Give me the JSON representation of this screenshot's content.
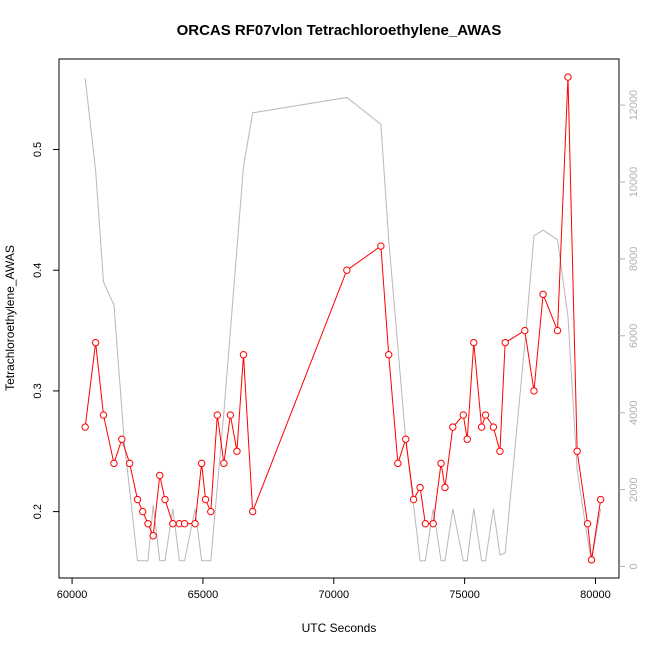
{
  "chart_data": {
    "type": "line",
    "title": "ORCAS RF07vlon Tetrachloroethylene_AWAS",
    "xlabel": "UTC Seconds",
    "ylabel": "Tetrachloroethylene_AWAS",
    "xlim": [
      59500,
      80900
    ],
    "ylim": [
      0.145,
      0.575
    ],
    "y2lim": [
      -300,
      13200
    ],
    "x_ticks": [
      60000,
      65000,
      70000,
      75000,
      80000
    ],
    "y_ticks": [
      0.2,
      0.3,
      0.4,
      0.5
    ],
    "y2_ticks": [
      0,
      2000,
      4000,
      6000,
      8000,
      10000,
      12000
    ],
    "primary_color": "#ff0000",
    "secondary_color": "#b8b8b8",
    "series": [
      {
        "axis": "left",
        "marker": "circle",
        "x": [
          60500,
          60900,
          61200,
          61600,
          61900,
          62200,
          62500,
          62700,
          62900,
          63100,
          63350,
          63550,
          63850,
          64100,
          64300,
          64700,
          64950,
          65100,
          65300,
          65550,
          65800,
          66050,
          66300,
          66550,
          66900,
          70500,
          71800,
          72100,
          72450,
          72750,
          73050,
          73300,
          73500,
          73800,
          74100,
          74250,
          74550,
          74950,
          75100,
          75350,
          75650,
          75800,
          76100,
          76350,
          76550,
          77300,
          77650,
          78000,
          78550,
          78950,
          79300,
          79700,
          79850,
          80200
        ],
        "y": [
          0.27,
          0.34,
          0.28,
          0.24,
          0.26,
          0.24,
          0.21,
          0.2,
          0.19,
          0.18,
          0.23,
          0.21,
          0.19,
          0.19,
          0.19,
          0.19,
          0.24,
          0.21,
          0.2,
          0.28,
          0.24,
          0.28,
          0.25,
          0.33,
          0.2,
          0.4,
          0.42,
          0.33,
          0.24,
          0.26,
          0.21,
          0.22,
          0.19,
          0.19,
          0.24,
          0.22,
          0.27,
          0.28,
          0.26,
          0.34,
          0.27,
          0.28,
          0.27,
          0.25,
          0.34,
          0.35,
          0.3,
          0.38,
          0.35,
          0.56,
          0.25,
          0.19,
          0.16,
          0.21
        ]
      },
      {
        "axis": "right",
        "x": [
          60500,
          60900,
          61200,
          61600,
          62000,
          62500,
          62900,
          63100,
          63350,
          63550,
          63850,
          64100,
          64300,
          64700,
          64950,
          65300,
          65800,
          66550,
          66900,
          70500,
          71800,
          72100,
          72750,
          73300,
          73500,
          73800,
          74100,
          74250,
          74550,
          74950,
          75100,
          75350,
          75650,
          75800,
          76100,
          76350,
          76550,
          77300,
          77650,
          78000,
          78550,
          78950,
          79300,
          79700,
          79850,
          80200
        ],
        "y": [
          12700,
          10300,
          7400,
          6800,
          3200,
          150,
          150,
          1600,
          150,
          150,
          1500,
          150,
          150,
          1500,
          150,
          150,
          4000,
          10400,
          11800,
          12200,
          11500,
          8500,
          3300,
          150,
          150,
          1500,
          150,
          150,
          1500,
          150,
          150,
          1500,
          150,
          150,
          1500,
          300,
          350,
          5800,
          8600,
          8750,
          8500,
          6500,
          2500,
          700,
          150,
          1500
        ]
      }
    ]
  }
}
